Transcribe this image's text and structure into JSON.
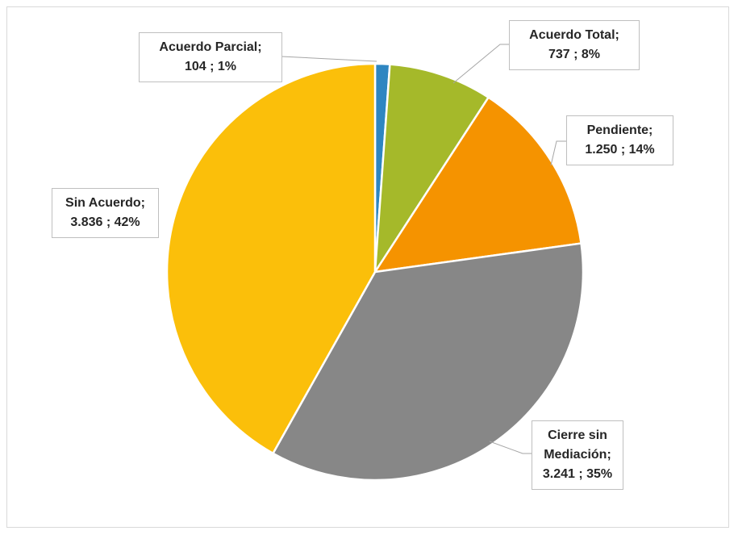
{
  "chart_data": {
    "type": "pie",
    "categories": [
      "Acuerdo Parcial;",
      "Acuerdo Total;",
      "Pendiente;",
      "Cierre sin Mediación;",
      "Sin Acuerdo;"
    ],
    "values": [
      104,
      737,
      1250,
      3241,
      3836
    ],
    "value_labels": [
      "104 ; 1%",
      "737 ; 8%",
      "1.250 ; 14%",
      "3.241 ; 35%",
      "3.836 ; 42%"
    ],
    "colors": [
      "#2e86c1",
      "#a5b92a",
      "#f59300",
      "#878787",
      "#fbbf0a"
    ]
  }
}
